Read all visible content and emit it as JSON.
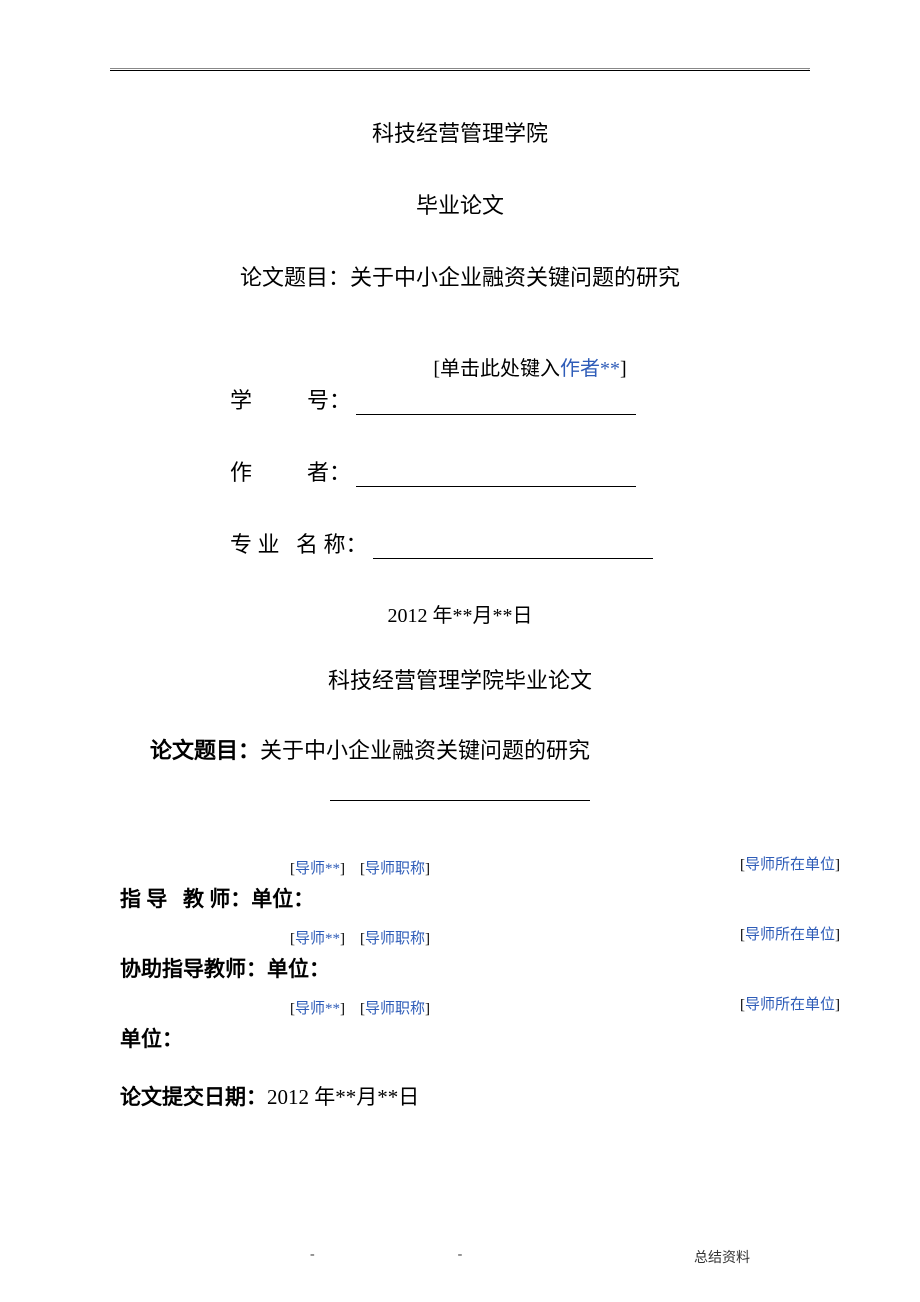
{
  "header": {
    "dash_left": "-",
    "dash_mid": "-",
    "dash_right": "-."
  },
  "cover": {
    "institution": "科技经营管理学院",
    "thesis_type": "毕业论文",
    "topic_prefix": "论文题目：",
    "topic_text": "关于中小企业融资关键问题的研究",
    "author_hint_prefix": "[单击此处键入",
    "author_hint_blue": "作者**",
    "author_hint_suffix": "]",
    "student_id_label": "学          号：",
    "author_label": "作          者：",
    "major_label": "专 业   名 称：",
    "date": "2012 年**月**日"
  },
  "inner": {
    "institution_thesis": "科技经营管理学院毕业论文",
    "topic_label": "论文题目：",
    "topic_text": "关于中小企业融资关键问题的研究"
  },
  "advisors": {
    "main_label": "指 导   教 师：单位：",
    "assist_label": "协助指导教师：单位：",
    "unit_label": "单位：",
    "placeholder_name_open": "[",
    "placeholder_name_blue": "导师**",
    "placeholder_name_close": "]",
    "placeholder_title_open": "[",
    "placeholder_title_blue": "导师职称",
    "placeholder_title_close": "]",
    "placeholder_unit_open": "[",
    "placeholder_unit_blue": "导师所在单位",
    "placeholder_unit_close": "]"
  },
  "submit": {
    "label": "论文提交日期：",
    "date": "2012 年**月**日"
  },
  "footer": {
    "dash": "-",
    "text": "总结资料"
  }
}
